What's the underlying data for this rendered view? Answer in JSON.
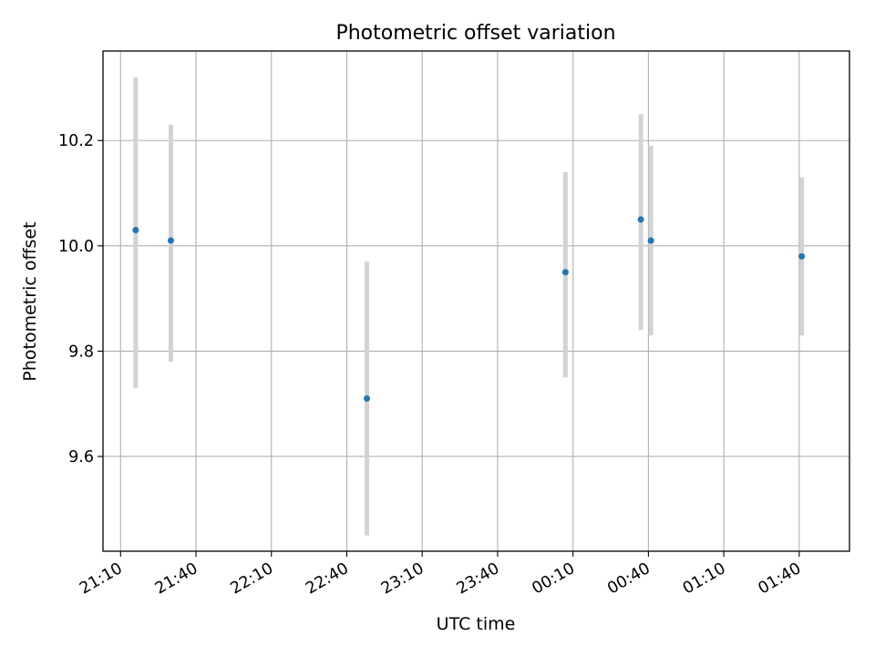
{
  "chart_data": {
    "type": "scatter",
    "title": "Photometric offset variation",
    "xlabel": "UTC time",
    "ylabel": "Photometric offset",
    "x_ticks": [
      "21:10",
      "21:40",
      "22:10",
      "22:40",
      "23:10",
      "23:40",
      "00:10",
      "00:40",
      "01:10",
      "01:40"
    ],
    "y_ticks": [
      "9.6",
      "9.8",
      "10.0",
      "10.2"
    ],
    "xlim": [
      "21:03",
      "02:00"
    ],
    "ylim": [
      9.42,
      10.37
    ],
    "grid": true,
    "error_bar_color": "#d3d3d3",
    "point_color": "#1f77b4",
    "points": [
      {
        "x": "21:16",
        "y": 10.03,
        "err_low": 9.73,
        "err_high": 10.32
      },
      {
        "x": "21:30",
        "y": 10.01,
        "err_low": 9.78,
        "err_high": 10.23
      },
      {
        "x": "22:48",
        "y": 9.71,
        "err_low": 9.45,
        "err_high": 9.97
      },
      {
        "x": "00:07",
        "y": 9.95,
        "err_low": 9.75,
        "err_high": 10.14
      },
      {
        "x": "00:37",
        "y": 10.05,
        "err_low": 9.84,
        "err_high": 10.25
      },
      {
        "x": "00:41",
        "y": 10.01,
        "err_low": 9.83,
        "err_high": 10.19
      },
      {
        "x": "01:41",
        "y": 9.98,
        "err_low": 9.83,
        "err_high": 10.13
      }
    ]
  }
}
